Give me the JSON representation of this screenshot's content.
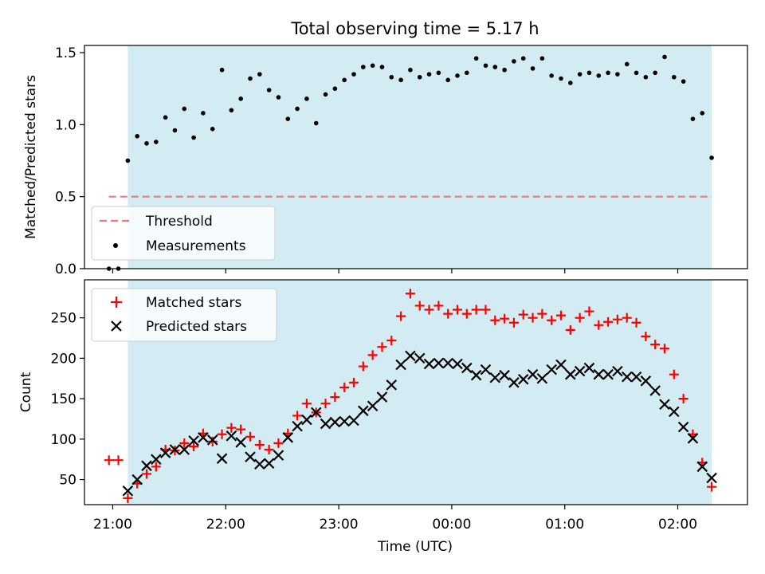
{
  "chart_data": [
    {
      "type": "scatter",
      "title": "Total observing time = 5.17 h",
      "xlabel": "",
      "ylabel": "Matched/Predicted stars",
      "xlim": [
        "20:45",
        "02:37"
      ],
      "ylim": [
        0,
        1.55
      ],
      "yticks": [
        "0.0",
        "0.5",
        "1.0",
        "1.5"
      ],
      "xticks": [
        "21:00",
        "22:00",
        "23:00",
        "00:00",
        "01:00",
        "02:00"
      ],
      "observing_window": [
        "21:08",
        "02:18"
      ],
      "observing_window_color": "#d3ebf2",
      "legend_position": "lower-left",
      "threshold": {
        "name": "Threshold",
        "value": 0.5,
        "x_start": "20:58",
        "x_end": "02:18",
        "color": "#f07878"
      },
      "series": [
        {
          "name": "Measurements",
          "color": "#000000",
          "x": [
            "20:58",
            "21:03",
            "21:08",
            "21:13",
            "21:18",
            "21:23",
            "21:28",
            "21:33",
            "21:38",
            "21:43",
            "21:48",
            "21:53",
            "21:58",
            "22:03",
            "22:08",
            "22:13",
            "22:18",
            "22:23",
            "22:28",
            "22:33",
            "22:38",
            "22:43",
            "22:48",
            "22:53",
            "22:58",
            "23:03",
            "23:08",
            "23:13",
            "23:18",
            "23:23",
            "23:28",
            "23:33",
            "23:38",
            "23:43",
            "23:48",
            "23:53",
            "23:58",
            "00:03",
            "00:08",
            "00:13",
            "00:18",
            "00:23",
            "00:28",
            "00:33",
            "00:38",
            "00:43",
            "00:48",
            "00:53",
            "00:58",
            "01:03",
            "01:08",
            "01:13",
            "01:18",
            "01:23",
            "01:28",
            "01:33",
            "01:38",
            "01:43",
            "01:48",
            "01:53",
            "01:58",
            "02:03",
            "02:08",
            "02:13",
            "02:18"
          ],
          "y": [
            0.0,
            0.0,
            0.75,
            0.92,
            0.87,
            0.88,
            1.05,
            0.96,
            1.11,
            0.91,
            1.08,
            0.97,
            1.38,
            1.1,
            1.18,
            1.32,
            1.35,
            1.24,
            1.19,
            1.04,
            1.11,
            1.18,
            1.01,
            1.21,
            1.25,
            1.31,
            1.35,
            1.4,
            1.41,
            1.4,
            1.33,
            1.31,
            1.38,
            1.33,
            1.35,
            1.36,
            1.31,
            1.34,
            1.36,
            1.46,
            1.41,
            1.4,
            1.38,
            1.44,
            1.46,
            1.39,
            1.46,
            1.34,
            1.32,
            1.29,
            1.35,
            1.36,
            1.34,
            1.36,
            1.35,
            1.42,
            1.36,
            1.33,
            1.36,
            1.47,
            1.33,
            1.3,
            1.04,
            1.08,
            0.77
          ]
        }
      ]
    },
    {
      "type": "scatter",
      "title": "",
      "xlabel": "Time (UTC)",
      "ylabel": "Count",
      "xlim": [
        "20:45",
        "02:37"
      ],
      "ylim": [
        19,
        297
      ],
      "yticks": [
        "50",
        "100",
        "150",
        "200",
        "250"
      ],
      "xticks": [
        "21:00",
        "22:00",
        "23:00",
        "00:00",
        "01:00",
        "02:00"
      ],
      "observing_window": [
        "21:08",
        "02:18"
      ],
      "observing_window_color": "#d3ebf2",
      "legend_position": "upper-left",
      "series": [
        {
          "name": "Matched stars",
          "marker": "plus",
          "color": "#ff0000",
          "x": [
            "20:58",
            "21:03",
            "21:08",
            "21:13",
            "21:18",
            "21:23",
            "21:28",
            "21:33",
            "21:38",
            "21:43",
            "21:48",
            "21:53",
            "21:58",
            "22:03",
            "22:08",
            "22:13",
            "22:18",
            "22:23",
            "22:28",
            "22:33",
            "22:38",
            "22:43",
            "22:48",
            "22:53",
            "22:58",
            "23:03",
            "23:08",
            "23:13",
            "23:18",
            "23:23",
            "23:28",
            "23:33",
            "23:38",
            "23:43",
            "23:48",
            "23:53",
            "23:58",
            "00:03",
            "00:08",
            "00:13",
            "00:18",
            "00:23",
            "00:28",
            "00:33",
            "00:38",
            "00:43",
            "00:48",
            "00:53",
            "00:58",
            "01:03",
            "01:08",
            "01:13",
            "01:18",
            "01:23",
            "01:28",
            "01:33",
            "01:38",
            "01:43",
            "01:48",
            "01:53",
            "01:58",
            "02:03",
            "02:08",
            "02:13",
            "02:18"
          ],
          "y": [
            74,
            74,
            27,
            45,
            57,
            66,
            87,
            86,
            95,
            91,
            107,
            97,
            106,
            114,
            112,
            103,
            93,
            87,
            95,
            107,
            129,
            144,
            133,
            144,
            152,
            164,
            170,
            190,
            204,
            214,
            222,
            252,
            280,
            265,
            260,
            265,
            255,
            260,
            255,
            260,
            260,
            247,
            249,
            244,
            254,
            250,
            255,
            247,
            253,
            235,
            250,
            258,
            241,
            245,
            248,
            250,
            244,
            227,
            217,
            212,
            180,
            150,
            106,
            71,
            41
          ]
        },
        {
          "name": "Predicted stars",
          "marker": "x",
          "color": "#000000",
          "x": [
            "21:08",
            "21:13",
            "21:18",
            "21:23",
            "21:28",
            "21:33",
            "21:38",
            "21:43",
            "21:48",
            "21:53",
            "21:58",
            "22:03",
            "22:08",
            "22:13",
            "22:18",
            "22:23",
            "22:28",
            "22:33",
            "22:38",
            "22:43",
            "22:48",
            "22:53",
            "22:58",
            "23:03",
            "23:08",
            "23:13",
            "23:18",
            "23:23",
            "23:28",
            "23:33",
            "23:38",
            "23:43",
            "23:48",
            "23:53",
            "23:58",
            "00:03",
            "00:08",
            "00:13",
            "00:18",
            "00:23",
            "00:28",
            "00:33",
            "00:38",
            "00:43",
            "00:48",
            "00:53",
            "00:58",
            "01:03",
            "01:08",
            "01:13",
            "01:18",
            "01:23",
            "01:28",
            "01:33",
            "01:38",
            "01:43",
            "01:48",
            "01:53",
            "01:58",
            "02:03",
            "02:08",
            "02:13",
            "02:18"
          ],
          "y": [
            36,
            50,
            67,
            75,
            83,
            87,
            87,
            98,
            102,
            99,
            76,
            104,
            96,
            78,
            69,
            70,
            80,
            102,
            116,
            124,
            133,
            119,
            121,
            122,
            123,
            135,
            141,
            152,
            167,
            192,
            203,
            200,
            193,
            194,
            194,
            193,
            188,
            179,
            186,
            176,
            179,
            170,
            174,
            180,
            175,
            186,
            192,
            180,
            184,
            188,
            180,
            180,
            184,
            177,
            177,
            172,
            160,
            143,
            134,
            115,
            101,
            66,
            52
          ]
        }
      ]
    }
  ]
}
